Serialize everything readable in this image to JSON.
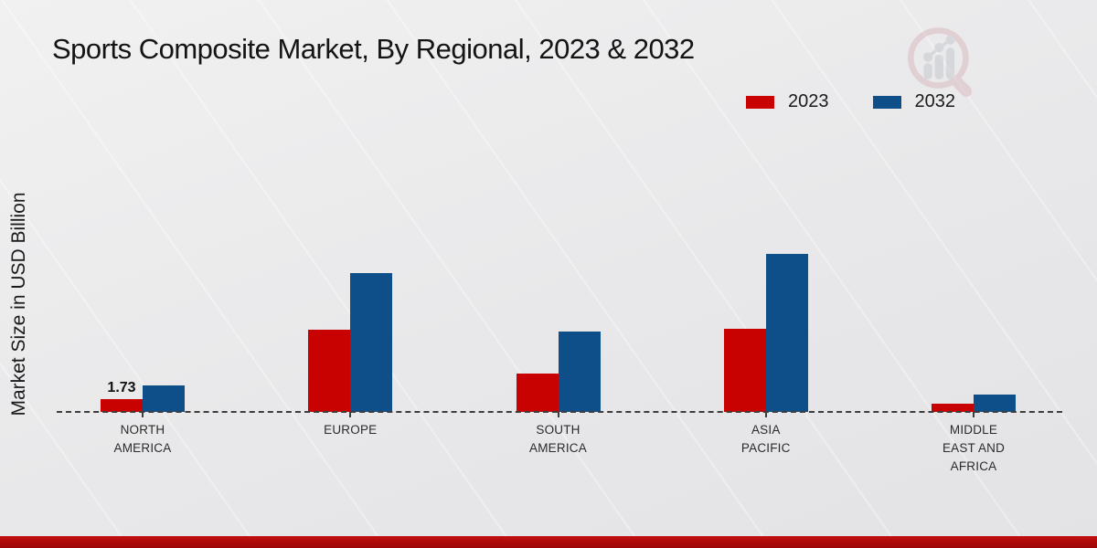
{
  "header": {
    "title": "Sports Composite Market, By Regional, 2023 & 2032"
  },
  "legend": {
    "items": [
      {
        "label": "2023",
        "color": "#c80101"
      },
      {
        "label": "2032",
        "color": "#0e4f8a"
      }
    ]
  },
  "watermark": {
    "name": "magnifier-bar-chart-logo"
  },
  "chart_data": {
    "type": "bar",
    "title": "Sports Composite Market, By Regional, 2023 & 2032",
    "ylabel": "Market Size in USD Billion",
    "xlabel": "",
    "categories": [
      "NORTH AMERICA",
      "EUROPE",
      "SOUTH AMERICA",
      "ASIA PACIFIC",
      "MIDDLE EAST AND AFRICA"
    ],
    "series": [
      {
        "name": "2023",
        "color": "#c80101",
        "values": [
          1.73,
          11.1,
          5.2,
          11.2,
          1.15
        ]
      },
      {
        "name": "2032",
        "color": "#0e4f8a",
        "values": [
          3.6,
          18.8,
          10.9,
          21.4,
          2.3
        ]
      }
    ],
    "data_labels": [
      {
        "series": "2023",
        "category": "NORTH AMERICA",
        "text": "1.73"
      }
    ],
    "ylim": [
      0,
      25
    ],
    "grid": false,
    "y_axis_ticks_visible": false,
    "baseline_style": "dashed",
    "legend_position": "top-right"
  },
  "colors": {
    "footer_strip": "#b00d0d",
    "baseline": "#3d3d3d",
    "background": "#e9e9ea"
  }
}
